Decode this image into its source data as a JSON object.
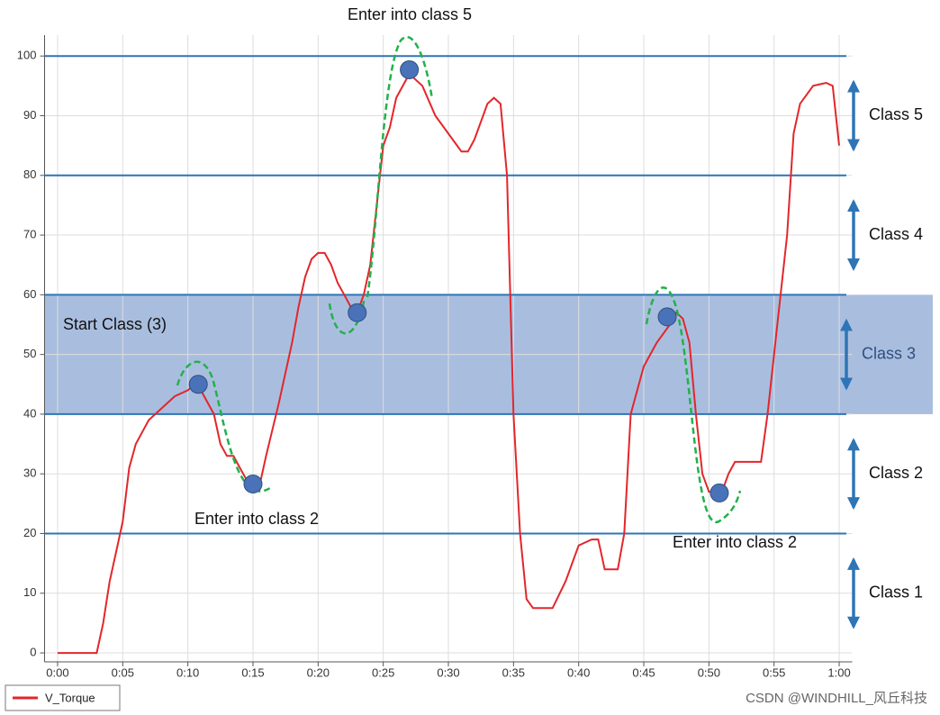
{
  "chart_data": {
    "type": "line",
    "series": [
      {
        "name": "V_Torque",
        "color": "#e3262b",
        "x": [
          0,
          0.5,
          1,
          2,
          3,
          3.5,
          4,
          4.5,
          5,
          5.5,
          6,
          6.5,
          7,
          8,
          9,
          10,
          10.5,
          11,
          12,
          12.5,
          13,
          13.5,
          14,
          14.5,
          15,
          15.5,
          16,
          17,
          18,
          18.5,
          19,
          19.5,
          20,
          20.5,
          21,
          21.5,
          22,
          22.5,
          23,
          23.5,
          24,
          24.5,
          25,
          25.5,
          26,
          27,
          28,
          29,
          30,
          31,
          31.5,
          32,
          33,
          33.5,
          34,
          34.5,
          35,
          35.5,
          36,
          36.5,
          37,
          38,
          39,
          40,
          41,
          41.5,
          42,
          43,
          43.5,
          44,
          45,
          46,
          47,
          47.5,
          48,
          48.5,
          49,
          49.5,
          50,
          51,
          51.5,
          52,
          53,
          54,
          54.5,
          55,
          56,
          56.5,
          57,
          58,
          59,
          59.5,
          60
        ],
        "values": [
          0,
          0,
          0,
          0,
          0,
          5,
          12,
          17,
          22,
          31,
          35,
          37,
          39,
          41,
          43,
          44,
          45,
          44,
          40,
          35,
          33,
          33,
          31,
          29,
          28,
          28,
          33,
          42,
          52,
          58,
          63,
          66,
          67,
          67,
          65,
          62,
          60,
          58,
          57,
          60,
          65,
          75,
          85,
          88,
          93,
          97,
          95,
          90,
          87,
          84,
          84,
          86,
          92,
          93,
          92,
          80,
          40,
          20,
          9,
          7.5,
          7.5,
          7.5,
          12,
          18,
          19,
          19,
          14,
          14,
          20,
          40,
          48,
          52,
          55,
          57,
          56,
          52,
          40,
          30,
          27,
          27,
          30,
          32,
          32,
          32,
          40,
          50,
          70,
          87,
          92,
          95,
          95.5,
          95,
          85
        ]
      }
    ],
    "markers": {
      "color": "#4a72b8",
      "x": [
        10.8,
        15,
        23,
        27,
        46.8,
        50.8
      ],
      "values": [
        45,
        28.3,
        57,
        97.7,
        56.3,
        26.8
      ]
    },
    "class_bounds": [
      0,
      20,
      40,
      60,
      80,
      100
    ],
    "threshold_color": "#2e75b6",
    "band_color": "#a9bedf",
    "classes": [
      "Class 1",
      "Class 2",
      "Class 3",
      "Class 4",
      "Class 5"
    ],
    "start_class_label": "Start Class (3)",
    "annotations": [
      "Enter into class 5",
      "Enter into class 2",
      "Enter into class 2"
    ],
    "watermark": "CSDN @WINDHILL_风丘科技",
    "xlim": [
      -1,
      61
    ],
    "ylim": [
      -1.5,
      103.5
    ],
    "xticks": [
      {
        "value": 0,
        "label": "0:00"
      },
      {
        "value": 5,
        "label": "0:05"
      },
      {
        "value": 10,
        "label": "0:10"
      },
      {
        "value": 15,
        "label": "0:15"
      },
      {
        "value": 20,
        "label": "0:20"
      },
      {
        "value": 25,
        "label": "0:25"
      },
      {
        "value": 30,
        "label": "0:30"
      },
      {
        "value": 35,
        "label": "0:35"
      },
      {
        "value": 40,
        "label": "0:40"
      },
      {
        "value": 45,
        "label": "0:45"
      },
      {
        "value": 50,
        "label": "0:50"
      },
      {
        "value": 55,
        "label": "0:55"
      },
      {
        "value": 60,
        "label": "1:00"
      }
    ],
    "yticks": [
      0,
      10,
      20,
      30,
      40,
      50,
      60,
      70,
      80,
      90,
      100
    ],
    "grid": true,
    "legend": "bottom-left"
  }
}
